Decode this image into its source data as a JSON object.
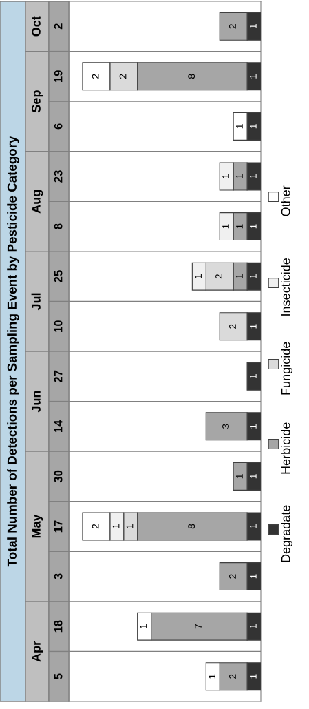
{
  "chart_data": {
    "type": "bar",
    "title": "Total Number of Detections per Sampling Event by Pesticide Category",
    "orientation": "horizontal",
    "categories": [
      "2",
      "19",
      "6",
      "23",
      "8",
      "25",
      "10",
      "27",
      "14",
      "30",
      "17",
      "3",
      "18",
      "5"
    ],
    "stacked": true,
    "data_labels": true,
    "legend": "right",
    "annotations": [
      "Oct",
      "Sep",
      "Aug",
      "Jul",
      "Jun",
      "May",
      "Apr"
    ],
    "series": [
      {
        "name": "Degradate",
        "color": "#333333",
        "values": [
          1,
          1,
          1,
          1,
          1,
          1,
          1,
          1,
          1,
          1,
          1,
          1,
          1,
          1
        ]
      },
      {
        "name": "Herbicide",
        "color": "#a6a6a6",
        "values": [
          2,
          8,
          null,
          1,
          1,
          1,
          null,
          null,
          3,
          1,
          8,
          2,
          7,
          2
        ]
      },
      {
        "name": "Fungicide",
        "color": "#dadada",
        "values": [
          null,
          2,
          null,
          null,
          null,
          2,
          2,
          null,
          null,
          null,
          1,
          null,
          null,
          null
        ]
      },
      {
        "name": "Insecticide",
        "color": "#f0f0f0",
        "values": [
          null,
          null,
          null,
          1,
          1,
          1,
          null,
          null,
          null,
          null,
          1,
          null,
          null,
          null
        ]
      },
      {
        "name": "Other",
        "color": "#ffffff",
        "values": [
          null,
          2,
          1,
          null,
          null,
          null,
          null,
          null,
          null,
          null,
          2,
          null,
          1,
          1
        ]
      }
    ]
  }
}
